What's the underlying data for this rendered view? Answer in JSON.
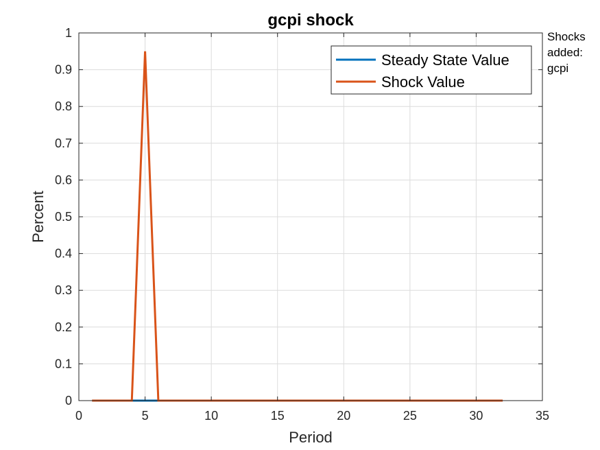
{
  "chart_data": {
    "type": "line",
    "title": "gcpi shock",
    "xlabel": "Period",
    "ylabel": "Percent",
    "xlim": [
      0,
      35
    ],
    "ylim": [
      0,
      1
    ],
    "xticks": [
      0,
      5,
      10,
      15,
      20,
      25,
      30,
      35
    ],
    "yticks": [
      0,
      0.1,
      0.2,
      0.3,
      0.4,
      0.5,
      0.6,
      0.7,
      0.8,
      0.9,
      1
    ],
    "grid": true,
    "legend_position": "top-right",
    "series": [
      {
        "name": "Steady State Value",
        "color": "#0072BD",
        "x": [
          1,
          32
        ],
        "y": [
          0,
          0
        ]
      },
      {
        "name": "Shock Value",
        "color": "#D95319",
        "x": [
          1,
          2,
          3,
          4,
          5,
          6,
          7,
          8,
          9,
          10,
          11,
          12,
          13,
          14,
          15,
          16,
          17,
          18,
          19,
          20,
          21,
          22,
          23,
          24,
          25,
          26,
          27,
          28,
          29,
          30,
          31,
          32
        ],
        "y": [
          0,
          0,
          0,
          0,
          0.95,
          0,
          0,
          0,
          0,
          0,
          0,
          0,
          0,
          0,
          0,
          0,
          0,
          0,
          0,
          0,
          0,
          0,
          0,
          0,
          0,
          0,
          0,
          0,
          0,
          0,
          0,
          0
        ]
      }
    ]
  },
  "annotation": {
    "lines": [
      "Shocks",
      "added:",
      "gcpi"
    ]
  }
}
